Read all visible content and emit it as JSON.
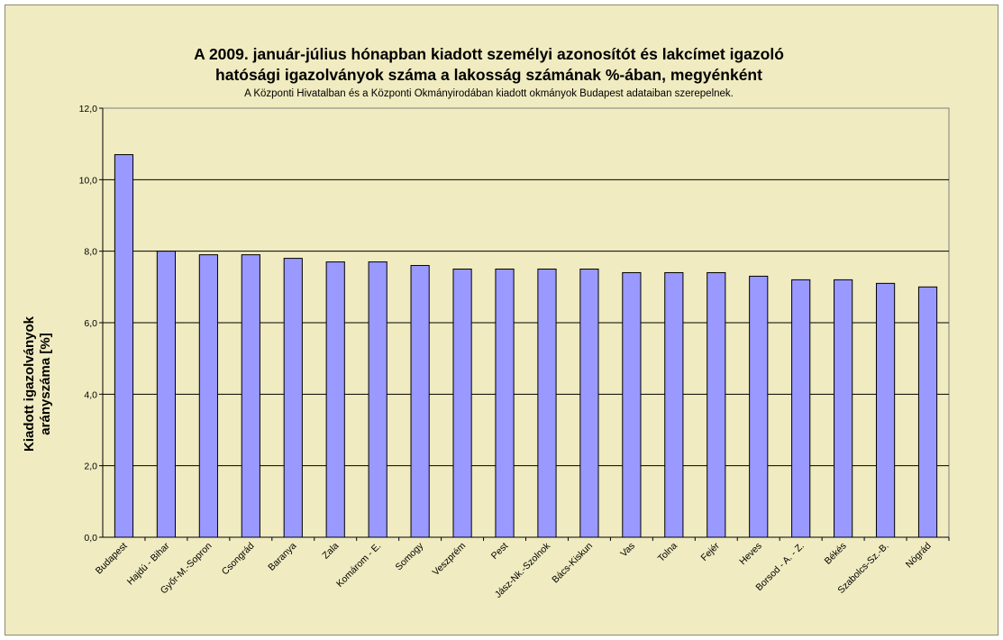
{
  "chart_data": {
    "type": "bar",
    "title_line1": "A 2009. január-július hónapban kiadott személyi azonosítót és lakcímet igazoló",
    "title_line2": "hatósági igazolványok száma a lakosság  számának %-ában, megyénként",
    "subtitle": "A Központi Hivatalban és a Központi Okmányirodában kiadott okmányok Budapest adataiban szerepelnek.",
    "xlabel": "",
    "ylabel_line1": "Kiadott igazolványok",
    "ylabel_line2": "arányszáma [%]",
    "ylim": [
      0,
      12
    ],
    "yticks": [
      0,
      2,
      4,
      6,
      8,
      10,
      12
    ],
    "ytick_labels": [
      "0,0",
      "2,0",
      "4,0",
      "6,0",
      "8,0",
      "10,0",
      "12,0"
    ],
    "grid": true,
    "legend": "none",
    "bar_color": "#9999ff",
    "categories": [
      "Budapest",
      "Hajdú - Bihar",
      "Győr-M.-Sopron",
      "Csongrád",
      "Baranya",
      "Zala",
      "Komárom - E.",
      "Somogy",
      "Veszprém",
      "Pest",
      "Jász-Nk.-Szolnok",
      "Bács-Kiskun",
      "Vas",
      "Tolna",
      "Fejér",
      "Heves",
      "Borsod - A. - Z.",
      "Békés",
      "Szabolcs-Sz.-B.",
      "Nógrád"
    ],
    "values": [
      10.7,
      8.0,
      7.9,
      7.9,
      7.8,
      7.7,
      7.7,
      7.6,
      7.5,
      7.5,
      7.5,
      7.5,
      7.4,
      7.4,
      7.4,
      7.3,
      7.2,
      7.2,
      7.1,
      7.0
    ]
  }
}
